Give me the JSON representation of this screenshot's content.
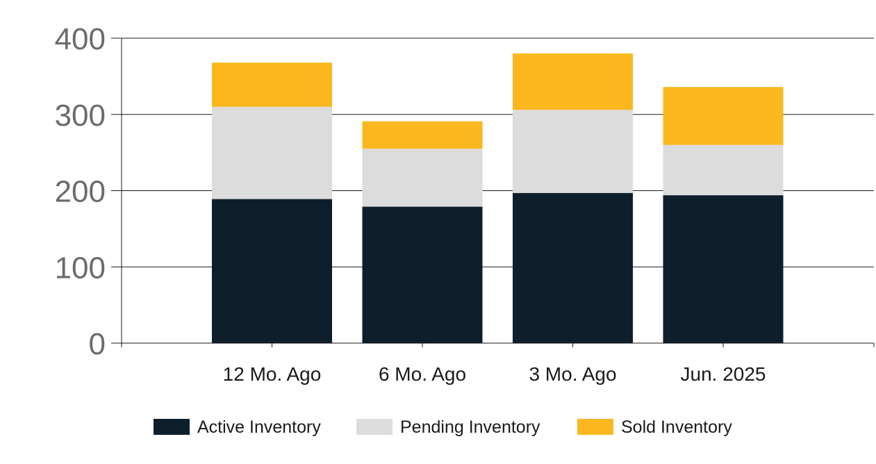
{
  "chart_data": {
    "type": "bar",
    "stacked": true,
    "categories": [
      "12 Mo. Ago",
      "6 Mo. Ago",
      "3 Mo. Ago",
      "Jun. 2025"
    ],
    "series": [
      {
        "name": "Active Inventory",
        "values": [
          189,
          179,
          197,
          194
        ],
        "color": "#0d1f2b"
      },
      {
        "name": "Pending Inventory",
        "values": [
          121,
          76,
          109,
          66
        ],
        "color": "#dcdcdc"
      },
      {
        "name": "Sold Inventory",
        "values": [
          58,
          36,
          74,
          76
        ],
        "color": "#fab81e"
      }
    ],
    "title": "",
    "xlabel": "",
    "ylabel": "",
    "ylim": [
      0,
      400
    ],
    "yticks": [
      0,
      100,
      200,
      300,
      400
    ],
    "grid": true,
    "legend_position": "bottom"
  }
}
